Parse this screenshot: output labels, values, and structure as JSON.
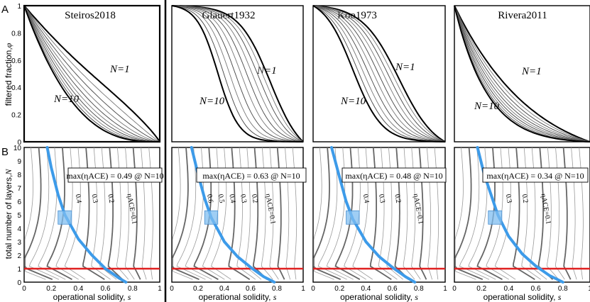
{
  "chart_data": {
    "type": "line",
    "panel_labels": [
      "A",
      "B"
    ],
    "top_row": {
      "ylabel": "filtered fraction,",
      "ylabel_symbol": "φ",
      "yticks": [
        "0",
        "0.2",
        "0.4",
        "0.6",
        "0.8",
        "1"
      ],
      "xlim": [
        0,
        1
      ],
      "ylim": [
        0,
        1
      ],
      "n_curves_per_model": 10,
      "models": [
        {
          "title": "Steiros2018",
          "label_n1": "N=1",
          "label_n10": "N=10"
        },
        {
          "title": "Glauert1932",
          "label_n1": "N=1",
          "label_n10": "N=10"
        },
        {
          "title": "Koo1973",
          "label_n1": "N=1",
          "label_n10": "N=10"
        },
        {
          "title": "Rivera2011",
          "label_n1": "N=1",
          "label_n10": "N=10"
        }
      ]
    },
    "bottom_row": {
      "xlabel": "operational solidity,",
      "xlabel_symbol": "s",
      "ylabel": "total number of layers,",
      "ylabel_symbol": "N",
      "xticks": [
        "0",
        "0.2",
        "0.4",
        "0.6",
        "0.8",
        "1"
      ],
      "yticks": [
        "0",
        "1",
        "2",
        "3",
        "4",
        "5",
        "6",
        "7",
        "8",
        "9",
        "10"
      ],
      "xlim": [
        0,
        1
      ],
      "ylim": [
        0,
        10
      ],
      "reference_line_N": 1,
      "optimum_box": {
        "s": [
          0.25,
          0.35
        ],
        "N": [
          4.3,
          5.3
        ]
      },
      "panels": [
        {
          "annotation": "max(ηACE) = 0.49 @ N=10",
          "eta_max": 0.49,
          "N_at_max": 10,
          "contour_labels": [
            "0.4",
            "0.3",
            "0.2",
            "ηACE=0.1"
          ],
          "optimal_curve": [
            [
              0.17,
              10
            ],
            [
              0.2,
              8.5
            ],
            [
              0.25,
              6.5
            ],
            [
              0.3,
              5
            ],
            [
              0.4,
              3.2
            ],
            [
              0.5,
              2
            ],
            [
              0.6,
              1
            ],
            [
              0.7,
              0.3
            ],
            [
              0.75,
              0
            ]
          ]
        },
        {
          "annotation": "max(ηACE) = 0.63 @ N=10",
          "eta_max": 0.63,
          "N_at_max": 10,
          "contour_labels": [
            "0.6",
            "0.5",
            "0.4",
            "0.3",
            "0.2",
            "ηACE=0.1"
          ],
          "optimal_curve": [
            [
              0.15,
              10
            ],
            [
              0.2,
              8
            ],
            [
              0.25,
              6.2
            ],
            [
              0.3,
              4.8
            ],
            [
              0.4,
              3
            ],
            [
              0.5,
              1.9
            ],
            [
              0.6,
              1.1
            ],
            [
              0.7,
              0.4
            ],
            [
              0.78,
              0
            ]
          ]
        },
        {
          "annotation": "max(ηACE) = 0.48 @ N=10",
          "eta_max": 0.48,
          "N_at_max": 10,
          "contour_labels": [
            "0.4",
            "0.3",
            "0.2",
            "ηACE=0.1"
          ],
          "optimal_curve": [
            [
              0.14,
              10
            ],
            [
              0.2,
              7.8
            ],
            [
              0.25,
              6
            ],
            [
              0.3,
              4.7
            ],
            [
              0.4,
              3
            ],
            [
              0.5,
              1.9
            ],
            [
              0.6,
              1.1
            ],
            [
              0.7,
              0.4
            ],
            [
              0.77,
              0
            ]
          ]
        },
        {
          "annotation": "max(ηACE) = 0.34 @ N=10",
          "eta_max": 0.34,
          "N_at_max": 10,
          "contour_labels": [
            "0.3",
            "0.2",
            "ηACE=0.1"
          ],
          "optimal_curve": [
            [
              0.17,
              10
            ],
            [
              0.22,
              8
            ],
            [
              0.27,
              6.5
            ],
            [
              0.32,
              5
            ],
            [
              0.4,
              3.4
            ],
            [
              0.5,
              2.1
            ],
            [
              0.6,
              1.2
            ],
            [
              0.7,
              0.5
            ],
            [
              0.8,
              0
            ]
          ]
        }
      ]
    },
    "colors": {
      "blue_curve": "#3d9be9",
      "red_line": "#e02020",
      "box_fill": "#7fbdf0",
      "contour_dark": "#666666",
      "contour_light": "#9a9a9a"
    }
  }
}
